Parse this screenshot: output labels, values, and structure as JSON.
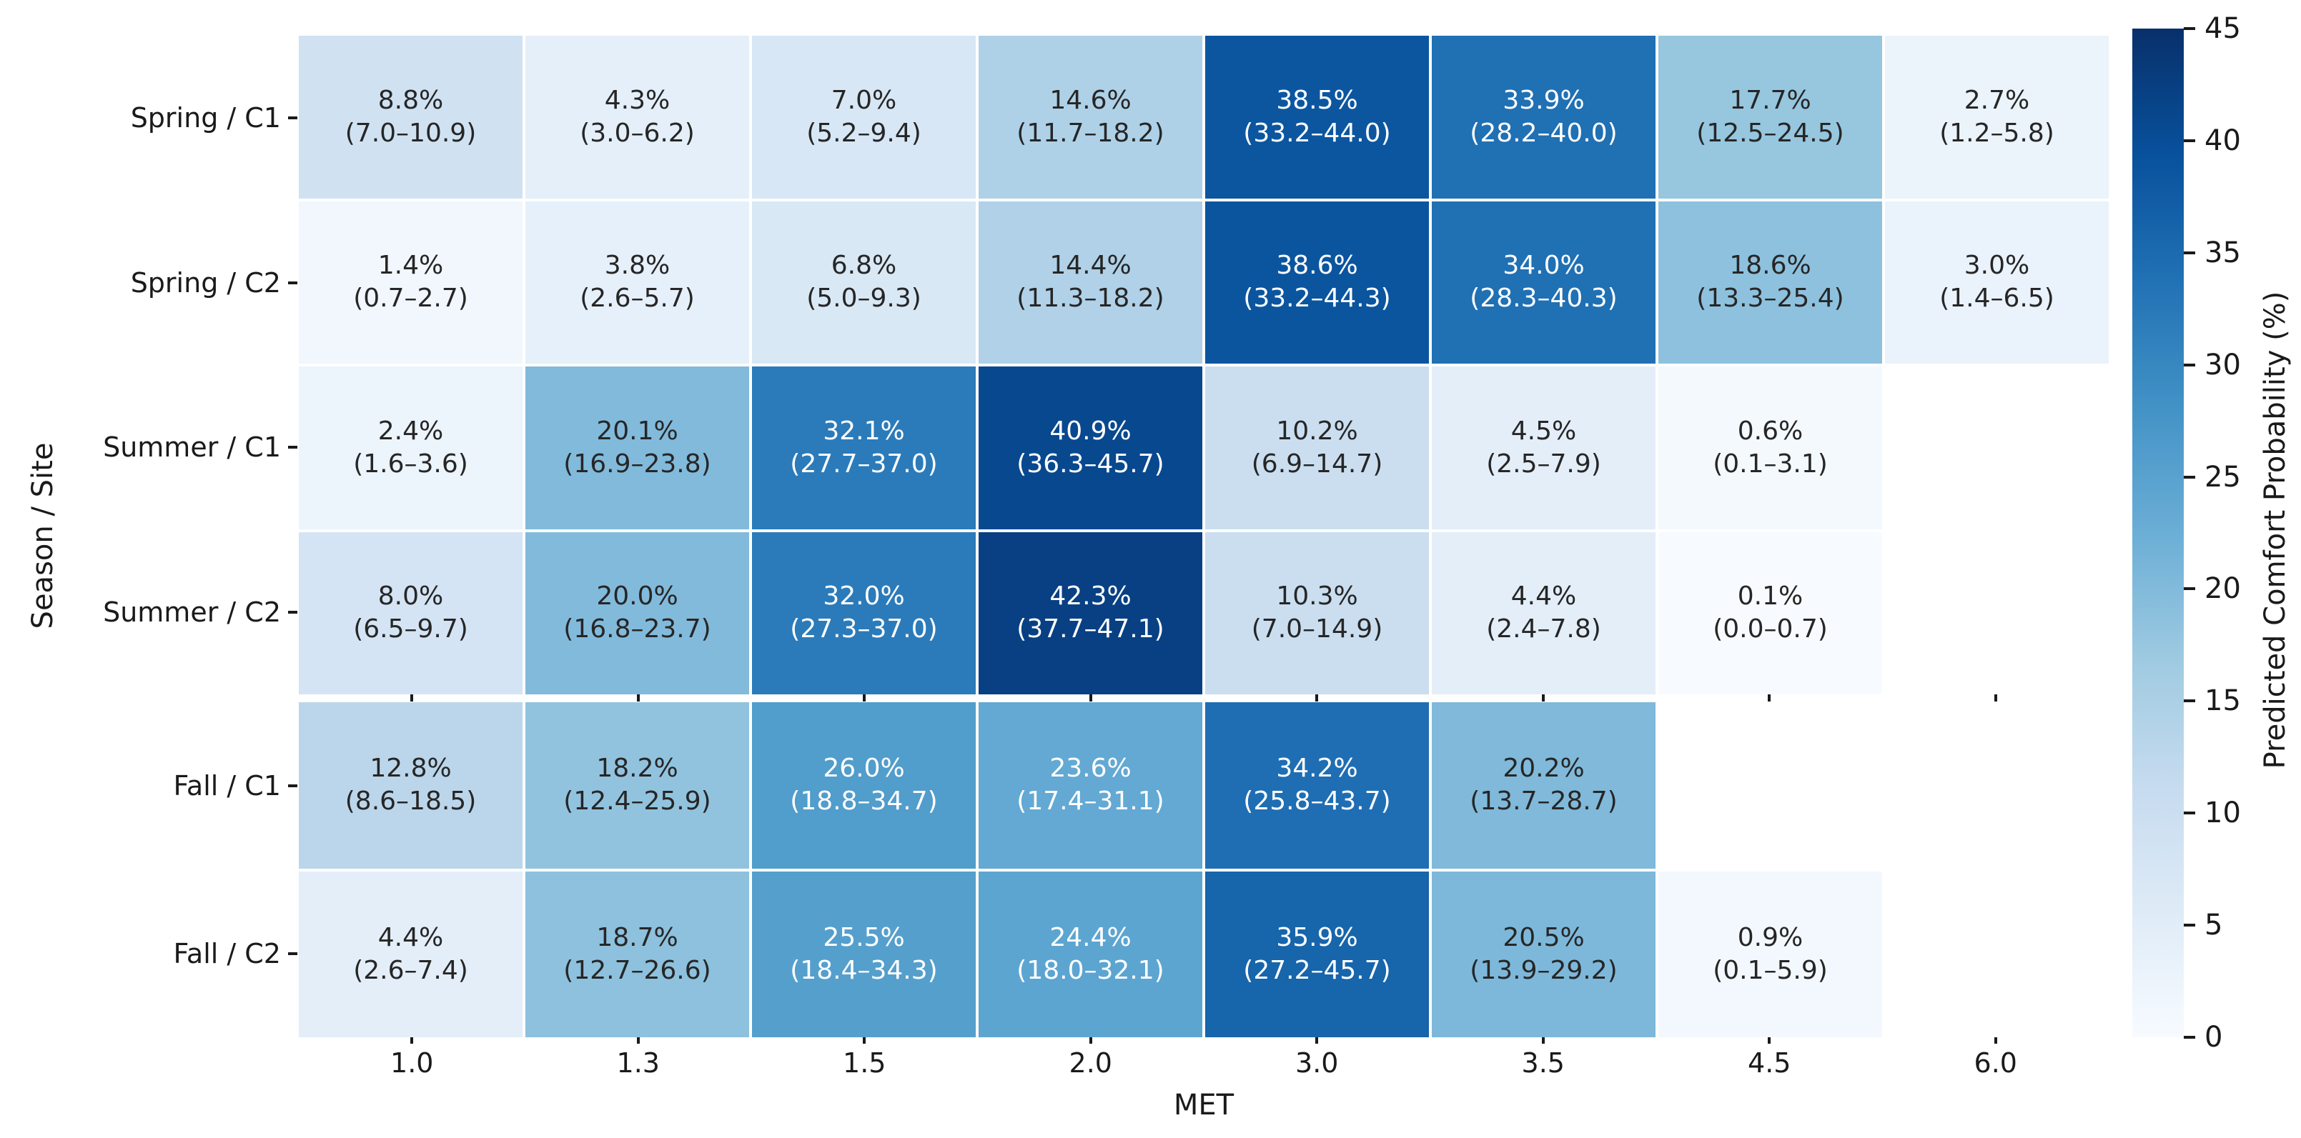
{
  "chart_data": {
    "type": "heatmap",
    "xlabel": "MET",
    "ylabel": "Season / Site",
    "x_categories": [
      "1.0",
      "1.3",
      "1.5",
      "2.0",
      "3.0",
      "3.5",
      "4.5",
      "6.0"
    ],
    "y_categories": [
      "Spring / C1",
      "Spring / C2",
      "Summer / C1",
      "Summer / C2",
      "Fall / C1",
      "Fall / C2"
    ],
    "subplot_split_after_row": 4,
    "grid": "white cell separators",
    "legend_position": "right colorbar",
    "colorbar": {
      "label": "Predicted Comfort Probability (%)",
      "ticks": [
        0,
        5,
        10,
        15,
        20,
        25,
        30,
        35,
        40,
        45
      ],
      "vmin": 0,
      "vmax": 45
    },
    "colormap": {
      "name": "Blues",
      "stops": [
        "#f7fbff",
        "#deebf7",
        "#c6dbef",
        "#9ecae1",
        "#6baed6",
        "#4292c6",
        "#2171b5",
        "#08519c",
        "#08306b"
      ]
    },
    "annotation_text_colors": {
      "dark": "#262626",
      "light": "#ffffff"
    },
    "cells": [
      [
        {
          "v": 8.8,
          "pct": "8.8%",
          "ci": "(7.0–10.9)"
        },
        {
          "v": 4.3,
          "pct": "4.3%",
          "ci": "(3.0–6.2)"
        },
        {
          "v": 7.0,
          "pct": "7.0%",
          "ci": "(5.2–9.4)"
        },
        {
          "v": 14.6,
          "pct": "14.6%",
          "ci": "(11.7–18.2)"
        },
        {
          "v": 38.5,
          "pct": "38.5%",
          "ci": "(33.2–44.0)"
        },
        {
          "v": 33.9,
          "pct": "33.9%",
          "ci": "(28.2–40.0)"
        },
        {
          "v": 17.7,
          "pct": "17.7%",
          "ci": "(12.5–24.5)"
        },
        {
          "v": 2.7,
          "pct": "2.7%",
          "ci": "(1.2–5.8)"
        }
      ],
      [
        {
          "v": 1.4,
          "pct": "1.4%",
          "ci": "(0.7–2.7)"
        },
        {
          "v": 3.8,
          "pct": "3.8%",
          "ci": "(2.6–5.7)"
        },
        {
          "v": 6.8,
          "pct": "6.8%",
          "ci": "(5.0–9.3)"
        },
        {
          "v": 14.4,
          "pct": "14.4%",
          "ci": "(11.3–18.2)"
        },
        {
          "v": 38.6,
          "pct": "38.6%",
          "ci": "(33.2–44.3)"
        },
        {
          "v": 34.0,
          "pct": "34.0%",
          "ci": "(28.3–40.3)"
        },
        {
          "v": 18.6,
          "pct": "18.6%",
          "ci": "(13.3–25.4)"
        },
        {
          "v": 3.0,
          "pct": "3.0%",
          "ci": "(1.4–6.5)"
        }
      ],
      [
        {
          "v": 2.4,
          "pct": "2.4%",
          "ci": "(1.6–3.6)"
        },
        {
          "v": 20.1,
          "pct": "20.1%",
          "ci": "(16.9–23.8)"
        },
        {
          "v": 32.1,
          "pct": "32.1%",
          "ci": "(27.7–37.0)"
        },
        {
          "v": 40.9,
          "pct": "40.9%",
          "ci": "(36.3–45.7)"
        },
        {
          "v": 10.2,
          "pct": "10.2%",
          "ci": "(6.9–14.7)"
        },
        {
          "v": 4.5,
          "pct": "4.5%",
          "ci": "(2.5–7.9)"
        },
        {
          "v": 0.6,
          "pct": "0.6%",
          "ci": "(0.1–3.1)"
        },
        null
      ],
      [
        {
          "v": 8.0,
          "pct": "8.0%",
          "ci": "(6.5–9.7)"
        },
        {
          "v": 20.0,
          "pct": "20.0%",
          "ci": "(16.8–23.7)"
        },
        {
          "v": 32.0,
          "pct": "32.0%",
          "ci": "(27.3–37.0)"
        },
        {
          "v": 42.3,
          "pct": "42.3%",
          "ci": "(37.7–47.1)"
        },
        {
          "v": 10.3,
          "pct": "10.3%",
          "ci": "(7.0–14.9)"
        },
        {
          "v": 4.4,
          "pct": "4.4%",
          "ci": "(2.4–7.8)"
        },
        {
          "v": 0.1,
          "pct": "0.1%",
          "ci": "(0.0–0.7)"
        },
        null
      ],
      [
        {
          "v": 12.8,
          "pct": "12.8%",
          "ci": "(8.6–18.5)"
        },
        {
          "v": 18.2,
          "pct": "18.2%",
          "ci": "(12.4–25.9)"
        },
        {
          "v": 26.0,
          "pct": "26.0%",
          "ci": "(18.8–34.7)"
        },
        {
          "v": 23.6,
          "pct": "23.6%",
          "ci": "(17.4–31.1)"
        },
        {
          "v": 34.2,
          "pct": "34.2%",
          "ci": "(25.8–43.7)"
        },
        {
          "v": 20.2,
          "pct": "20.2%",
          "ci": "(13.7–28.7)"
        },
        null,
        null
      ],
      [
        {
          "v": 4.4,
          "pct": "4.4%",
          "ci": "(2.6–7.4)"
        },
        {
          "v": 18.7,
          "pct": "18.7%",
          "ci": "(12.7–26.6)"
        },
        {
          "v": 25.5,
          "pct": "25.5%",
          "ci": "(18.4–34.3)"
        },
        {
          "v": 24.4,
          "pct": "24.4%",
          "ci": "(18.0–32.1)"
        },
        {
          "v": 35.9,
          "pct": "35.9%",
          "ci": "(27.2–45.7)"
        },
        {
          "v": 20.5,
          "pct": "20.5%",
          "ci": "(13.9–29.2)"
        },
        {
          "v": 0.9,
          "pct": "0.9%",
          "ci": "(0.1–5.9)"
        },
        null
      ]
    ]
  }
}
